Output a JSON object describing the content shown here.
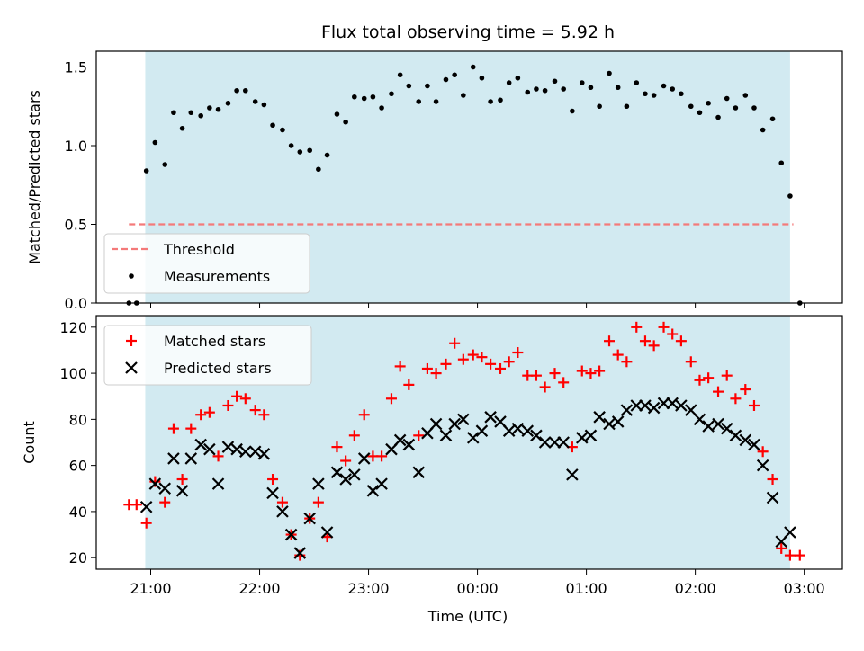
{
  "chart_data": {
    "title": "Flux total observing time = 5.92 h",
    "xlabel": "Time (UTC)",
    "x_unit": "hours since 21:00 UTC (negative = before 21:00)",
    "xlim": [
      -0.5,
      6.35
    ],
    "x_ticks": [
      {
        "value": 0,
        "label": "21:00"
      },
      {
        "value": 1,
        "label": "22:00"
      },
      {
        "value": 2,
        "label": "23:00"
      },
      {
        "value": 3,
        "label": "00:00"
      },
      {
        "value": 4,
        "label": "01:00"
      },
      {
        "value": 5,
        "label": "02:00"
      },
      {
        "value": 6,
        "label": "03:00"
      }
    ],
    "shaded_span": {
      "x": [
        -0.05,
        5.87
      ],
      "color": "#add8e6"
    },
    "panels": [
      {
        "type": "scatter",
        "ylabel": "Matched/Predicted stars",
        "ylim": [
          0,
          1.6
        ],
        "y_ticks": [
          {
            "value": 0,
            "label": "0.0"
          },
          {
            "value": 0.5,
            "label": "0.5"
          },
          {
            "value": 1,
            "label": "1.0"
          },
          {
            "value": 1.5,
            "label": "1.5"
          }
        ],
        "legend_position": "lower-left",
        "series": [
          {
            "name": "Threshold",
            "style": "dashed-line",
            "color": "#f47a7a",
            "x": [
              -0.2,
              5.9
            ],
            "y": [
              0.5,
              0.5
            ]
          },
          {
            "name": "Measurements",
            "style": "dot",
            "color": "#000000",
            "points": [
              [
                -0.2,
                0.0
              ],
              [
                -0.13,
                0.0
              ],
              [
                -0.04,
                0.84
              ],
              [
                0.04,
                1.02
              ],
              [
                0.13,
                0.88
              ],
              [
                0.21,
                1.21
              ],
              [
                0.29,
                1.11
              ],
              [
                0.37,
                1.21
              ],
              [
                0.46,
                1.19
              ],
              [
                0.54,
                1.24
              ],
              [
                0.62,
                1.23
              ],
              [
                0.71,
                1.27
              ],
              [
                0.79,
                1.35
              ],
              [
                0.87,
                1.35
              ],
              [
                0.96,
                1.28
              ],
              [
                1.04,
                1.26
              ],
              [
                1.12,
                1.13
              ],
              [
                1.21,
                1.1
              ],
              [
                1.29,
                1.0
              ],
              [
                1.37,
                0.96
              ],
              [
                1.46,
                0.97
              ],
              [
                1.54,
                0.85
              ],
              [
                1.62,
                0.94
              ],
              [
                1.71,
                1.2
              ],
              [
                1.79,
                1.15
              ],
              [
                1.87,
                1.31
              ],
              [
                1.96,
                1.3
              ],
              [
                2.04,
                1.31
              ],
              [
                2.12,
                1.24
              ],
              [
                2.21,
                1.33
              ],
              [
                2.29,
                1.45
              ],
              [
                2.37,
                1.38
              ],
              [
                2.46,
                1.28
              ],
              [
                2.54,
                1.38
              ],
              [
                2.62,
                1.28
              ],
              [
                2.71,
                1.42
              ],
              [
                2.79,
                1.45
              ],
              [
                2.87,
                1.32
              ],
              [
                2.96,
                1.5
              ],
              [
                3.04,
                1.43
              ],
              [
                3.12,
                1.28
              ],
              [
                3.21,
                1.29
              ],
              [
                3.29,
                1.4
              ],
              [
                3.37,
                1.43
              ],
              [
                3.46,
                1.34
              ],
              [
                3.54,
                1.36
              ],
              [
                3.62,
                1.35
              ],
              [
                3.71,
                1.41
              ],
              [
                3.79,
                1.36
              ],
              [
                3.87,
                1.22
              ],
              [
                3.96,
                1.4
              ],
              [
                4.04,
                1.37
              ],
              [
                4.12,
                1.25
              ],
              [
                4.21,
                1.46
              ],
              [
                4.29,
                1.37
              ],
              [
                4.37,
                1.25
              ],
              [
                4.46,
                1.4
              ],
              [
                4.54,
                1.33
              ],
              [
                4.62,
                1.32
              ],
              [
                4.71,
                1.38
              ],
              [
                4.79,
                1.36
              ],
              [
                4.87,
                1.33
              ],
              [
                4.96,
                1.25
              ],
              [
                5.04,
                1.21
              ],
              [
                5.12,
                1.27
              ],
              [
                5.21,
                1.18
              ],
              [
                5.29,
                1.3
              ],
              [
                5.37,
                1.24
              ],
              [
                5.46,
                1.32
              ],
              [
                5.54,
                1.24
              ],
              [
                5.62,
                1.1
              ],
              [
                5.71,
                1.17
              ],
              [
                5.79,
                0.89
              ],
              [
                5.87,
                0.68
              ],
              [
                5.96,
                0.0
              ]
            ]
          }
        ]
      },
      {
        "type": "scatter",
        "ylabel": "Count",
        "ylim": [
          15,
          125
        ],
        "y_ticks": [
          {
            "value": 20,
            "label": "20"
          },
          {
            "value": 40,
            "label": "40"
          },
          {
            "value": 60,
            "label": "60"
          },
          {
            "value": 80,
            "label": "80"
          },
          {
            "value": 100,
            "label": "100"
          },
          {
            "value": 120,
            "label": "120"
          }
        ],
        "legend_position": "upper-left",
        "series": [
          {
            "name": "Matched stars",
            "marker": "+",
            "color": "#ff0000",
            "points": [
              [
                -0.2,
                43
              ],
              [
                -0.13,
                43
              ],
              [
                -0.04,
                35
              ],
              [
                0.04,
                53
              ],
              [
                0.13,
                44
              ],
              [
                0.21,
                76
              ],
              [
                0.29,
                54
              ],
              [
                0.37,
                76
              ],
              [
                0.46,
                82
              ],
              [
                0.54,
                83
              ],
              [
                0.62,
                64
              ],
              [
                0.71,
                86
              ],
              [
                0.79,
                90
              ],
              [
                0.87,
                89
              ],
              [
                0.96,
                84
              ],
              [
                1.04,
                82
              ],
              [
                1.12,
                54
              ],
              [
                1.21,
                44
              ],
              [
                1.29,
                30
              ],
              [
                1.37,
                21
              ],
              [
                1.46,
                37
              ],
              [
                1.54,
                44
              ],
              [
                1.62,
                29
              ],
              [
                1.71,
                68
              ],
              [
                1.79,
                62
              ],
              [
                1.87,
                73
              ],
              [
                1.96,
                82
              ],
              [
                2.04,
                64
              ],
              [
                2.12,
                64
              ],
              [
                2.21,
                89
              ],
              [
                2.29,
                103
              ],
              [
                2.37,
                95
              ],
              [
                2.46,
                73
              ],
              [
                2.54,
                102
              ],
              [
                2.62,
                100
              ],
              [
                2.71,
                104
              ],
              [
                2.79,
                113
              ],
              [
                2.87,
                106
              ],
              [
                2.96,
                108
              ],
              [
                3.04,
                107
              ],
              [
                3.12,
                104
              ],
              [
                3.21,
                102
              ],
              [
                3.29,
                105
              ],
              [
                3.37,
                109
              ],
              [
                3.46,
                99
              ],
              [
                3.54,
                99
              ],
              [
                3.62,
                94
              ],
              [
                3.71,
                100
              ],
              [
                3.79,
                96
              ],
              [
                3.87,
                68
              ],
              [
                3.96,
                101
              ],
              [
                4.04,
                100
              ],
              [
                4.12,
                101
              ],
              [
                4.21,
                114
              ],
              [
                4.29,
                108
              ],
              [
                4.37,
                105
              ],
              [
                4.46,
                120
              ],
              [
                4.54,
                114
              ],
              [
                4.62,
                112
              ],
              [
                4.71,
                120
              ],
              [
                4.79,
                117
              ],
              [
                4.87,
                114
              ],
              [
                4.96,
                105
              ],
              [
                5.04,
                97
              ],
              [
                5.12,
                98
              ],
              [
                5.21,
                92
              ],
              [
                5.29,
                99
              ],
              [
                5.37,
                89
              ],
              [
                5.46,
                93
              ],
              [
                5.54,
                86
              ],
              [
                5.62,
                66
              ],
              [
                5.71,
                54
              ],
              [
                5.79,
                24
              ],
              [
                5.87,
                21
              ],
              [
                5.96,
                21
              ]
            ]
          },
          {
            "name": "Predicted stars",
            "marker": "x",
            "color": "#000000",
            "points": [
              [
                -0.04,
                42
              ],
              [
                0.04,
                52
              ],
              [
                0.13,
                50
              ],
              [
                0.21,
                63
              ],
              [
                0.29,
                49
              ],
              [
                0.37,
                63
              ],
              [
                0.46,
                69
              ],
              [
                0.54,
                67
              ],
              [
                0.62,
                52
              ],
              [
                0.71,
                68
              ],
              [
                0.79,
                67
              ],
              [
                0.87,
                66
              ],
              [
                0.96,
                66
              ],
              [
                1.04,
                65
              ],
              [
                1.12,
                48
              ],
              [
                1.21,
                40
              ],
              [
                1.29,
                30
              ],
              [
                1.37,
                22
              ],
              [
                1.46,
                37
              ],
              [
                1.54,
                52
              ],
              [
                1.62,
                31
              ],
              [
                1.71,
                57
              ],
              [
                1.79,
                54
              ],
              [
                1.87,
                56
              ],
              [
                1.96,
                63
              ],
              [
                2.04,
                49
              ],
              [
                2.12,
                52
              ],
              [
                2.21,
                67
              ],
              [
                2.29,
                71
              ],
              [
                2.37,
                69
              ],
              [
                2.46,
                57
              ],
              [
                2.54,
                74
              ],
              [
                2.62,
                78
              ],
              [
                2.71,
                73
              ],
              [
                2.79,
                78
              ],
              [
                2.87,
                80
              ],
              [
                2.96,
                72
              ],
              [
                3.04,
                75
              ],
              [
                3.12,
                81
              ],
              [
                3.21,
                79
              ],
              [
                3.29,
                75
              ],
              [
                3.37,
                76
              ],
              [
                3.46,
                75
              ],
              [
                3.54,
                73
              ],
              [
                3.62,
                70
              ],
              [
                3.71,
                70
              ],
              [
                3.79,
                70
              ],
              [
                3.87,
                56
              ],
              [
                3.96,
                72
              ],
              [
                4.04,
                73
              ],
              [
                4.12,
                81
              ],
              [
                4.21,
                78
              ],
              [
                4.29,
                79
              ],
              [
                4.37,
                84
              ],
              [
                4.46,
                86
              ],
              [
                4.54,
                86
              ],
              [
                4.62,
                85
              ],
              [
                4.71,
                87
              ],
              [
                4.79,
                87
              ],
              [
                4.87,
                86
              ],
              [
                4.96,
                84
              ],
              [
                5.04,
                80
              ],
              [
                5.12,
                77
              ],
              [
                5.21,
                78
              ],
              [
                5.29,
                76
              ],
              [
                5.37,
                73
              ],
              [
                5.46,
                71
              ],
              [
                5.54,
                69
              ],
              [
                5.62,
                60
              ],
              [
                5.71,
                46
              ],
              [
                5.79,
                27
              ],
              [
                5.87,
                31
              ]
            ]
          }
        ]
      }
    ]
  }
}
